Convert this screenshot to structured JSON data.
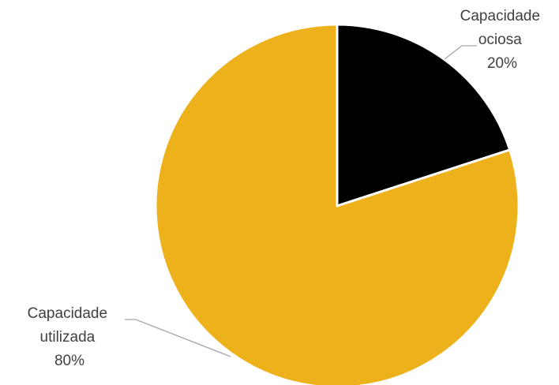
{
  "chart_data": {
    "type": "pie",
    "title": "",
    "slices": [
      {
        "label_lines": [
          "Capacidade",
          "ociosa"
        ],
        "value": 20,
        "value_label": "20%",
        "color": "#000000"
      },
      {
        "label_lines": [
          "Capacidade",
          "utilizada"
        ],
        "value": 80,
        "value_label": "80%",
        "color": "#EDB11C"
      }
    ],
    "legend": "none",
    "data_labels": "outside-with-leader-lines",
    "leader_line_color": "#A6A6A6",
    "slice_border_color": "#FFFFFF"
  }
}
